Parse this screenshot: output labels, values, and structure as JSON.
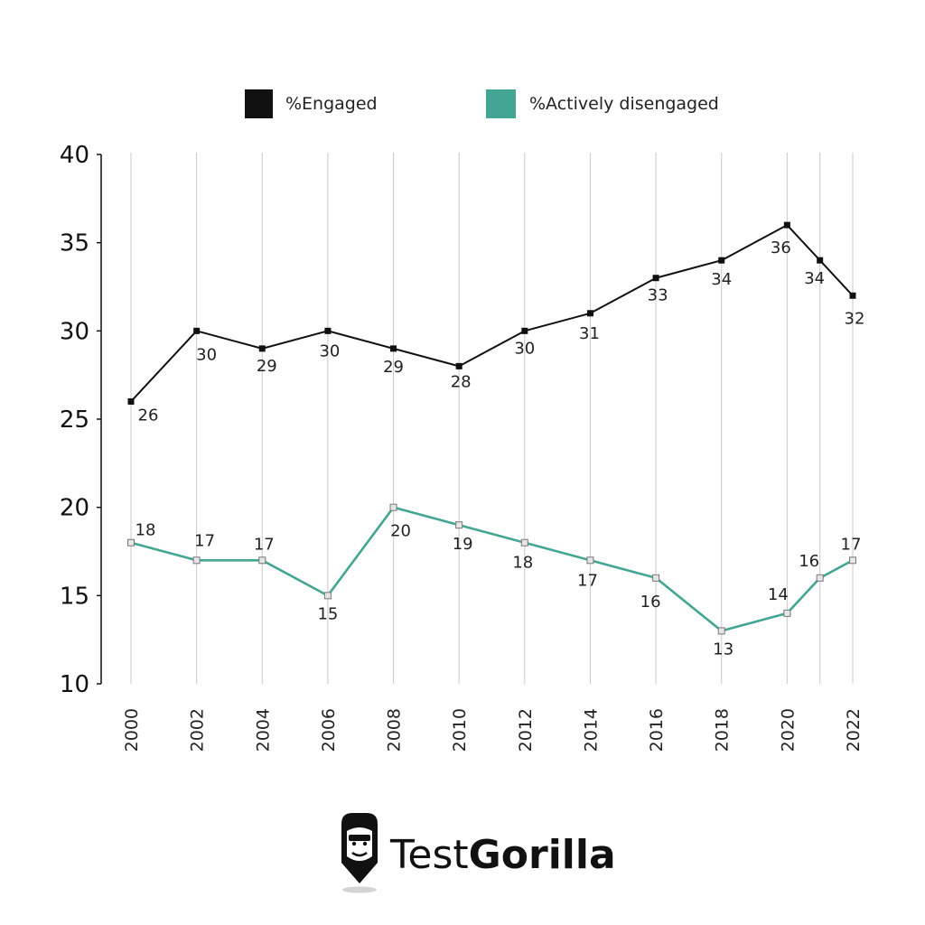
{
  "chart_data": {
    "type": "line",
    "title": "",
    "xlabel": "",
    "ylabel": "",
    "ylim": [
      10,
      40
    ],
    "yticks": [
      10,
      15,
      20,
      25,
      30,
      35,
      40
    ],
    "grid": "vertical",
    "legend_position": "top",
    "x": [
      2000,
      2002,
      2004,
      2006,
      2008,
      2010,
      2012,
      2014,
      2016,
      2018,
      2020,
      2021,
      2022
    ],
    "x_tick_labels": [
      "2000",
      "2002",
      "2004",
      "2006",
      "2008",
      "2010",
      "2012",
      "2014",
      "2016",
      "2018",
      "2020",
      "",
      "2022"
    ],
    "series": [
      {
        "name": "%Engaged",
        "color": "#111111",
        "values": [
          26,
          30,
          29,
          30,
          29,
          28,
          30,
          31,
          33,
          34,
          36,
          34,
          32
        ]
      },
      {
        "name": "%Actively disengaged",
        "color": "#43a692",
        "values": [
          18,
          17,
          17,
          15,
          20,
          19,
          18,
          17,
          16,
          13,
          14,
          16,
          17
        ]
      }
    ]
  },
  "logo": {
    "text_light": "Test",
    "text_bold": "Gorilla",
    "icon": "gorilla-icon"
  }
}
